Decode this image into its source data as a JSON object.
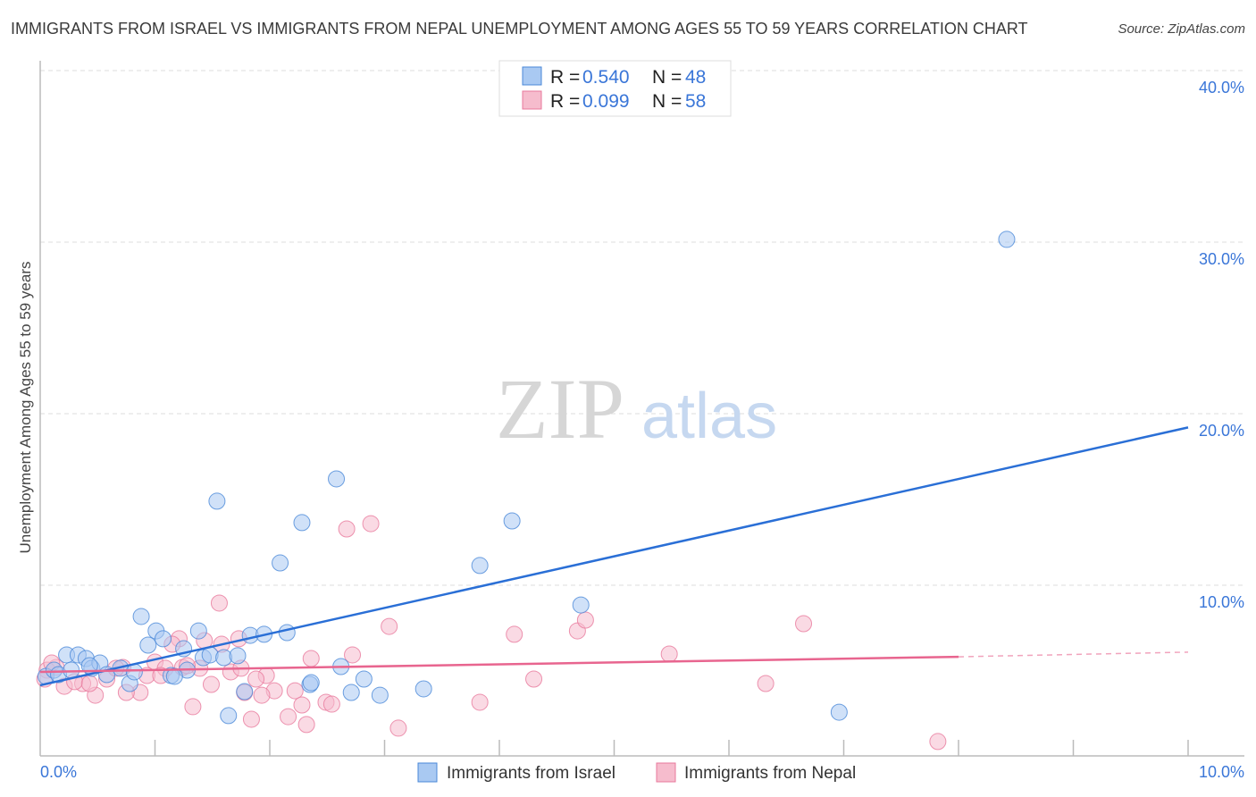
{
  "title": "IMMIGRANTS FROM ISRAEL VS IMMIGRANTS FROM NEPAL UNEMPLOYMENT AMONG AGES 55 TO 59 YEARS CORRELATION CHART",
  "source": "Source: ZipAtlas.com",
  "watermark": {
    "zip": "ZIP",
    "atlas": "atlas"
  },
  "colors": {
    "israel": "#4a88d8",
    "israel_fill": "#a9c9f2",
    "nepal": "#e8799c",
    "nepal_fill": "#f6bccd",
    "israel_line": "#2a6fd6",
    "nepal_line": "#e8658f",
    "tick": "#3a76d8"
  },
  "chart_data": {
    "type": "scatter",
    "title": "IMMIGRANTS FROM ISRAEL VS IMMIGRANTS FROM NEPAL UNEMPLOYMENT AMONG AGES 55 TO 59 YEARS CORRELATION CHART",
    "xlabel": "",
    "ylabel": "Unemployment Among Ages 55 to 59 years",
    "xlim": [
      0,
      10
    ],
    "ylim": [
      0,
      40
    ],
    "x_tick_labels": [
      "0.0%",
      "10.0%"
    ],
    "y_tick_labels": [
      {
        "v": 10,
        "label": "10.0%"
      },
      {
        "v": 20,
        "label": "20.0%"
      },
      {
        "v": 30,
        "label": "30.0%"
      },
      {
        "v": 40,
        "label": "40.0%"
      }
    ],
    "legend_stats": [
      {
        "r_label": "R = ",
        "r": "0.540",
        "n_label": "N = ",
        "n": "48"
      },
      {
        "r_label": "R = ",
        "r": "0.099",
        "n_label": "N = ",
        "n": "58"
      }
    ],
    "series": [
      {
        "name": "Immigrants from Israel",
        "trend": {
          "x": [
            0,
            10
          ],
          "y": [
            4.17,
            19.2
          ]
        },
        "points": [
          [
            0.05,
            4.69
          ],
          [
            0.12,
            5.05
          ],
          [
            0.23,
            5.94
          ],
          [
            0.33,
            5.94
          ],
          [
            0.4,
            5.73
          ],
          [
            0.45,
            5.16
          ],
          [
            0.52,
            5.47
          ],
          [
            0.58,
            4.79
          ],
          [
            0.7,
            5.16
          ],
          [
            0.78,
            4.27
          ],
          [
            0.88,
            8.18
          ],
          [
            0.94,
            6.51
          ],
          [
            1.01,
            7.34
          ],
          [
            1.07,
            6.88
          ],
          [
            1.14,
            4.74
          ],
          [
            1.25,
            6.3
          ],
          [
            1.28,
            5.05
          ],
          [
            1.38,
            7.34
          ],
          [
            1.42,
            5.78
          ],
          [
            1.48,
            5.94
          ],
          [
            1.54,
            14.9
          ],
          [
            1.6,
            5.78
          ],
          [
            1.64,
            2.4
          ],
          [
            1.72,
            5.89
          ],
          [
            1.78,
            3.8
          ],
          [
            1.83,
            7.08
          ],
          [
            1.95,
            7.14
          ],
          [
            2.09,
            11.3
          ],
          [
            2.15,
            7.24
          ],
          [
            2.28,
            13.65
          ],
          [
            2.35,
            4.22
          ],
          [
            2.58,
            16.2
          ],
          [
            2.62,
            5.26
          ],
          [
            2.71,
            3.75
          ],
          [
            2.82,
            4.53
          ],
          [
            2.96,
            3.59
          ],
          [
            3.34,
            3.96
          ],
          [
            3.83,
            11.15
          ],
          [
            4.11,
            13.75
          ],
          [
            4.71,
            8.85
          ],
          [
            6.96,
            2.6
          ],
          [
            8.42,
            30.16
          ],
          [
            0.16,
            4.79
          ],
          [
            0.27,
            5.05
          ],
          [
            1.17,
            4.69
          ],
          [
            0.82,
            4.95
          ],
          [
            0.43,
            5.31
          ],
          [
            2.36,
            4.32
          ]
        ]
      },
      {
        "name": "Immigrants from Nepal",
        "trend": {
          "x": [
            0,
            8
          ],
          "y": [
            4.95,
            5.83
          ],
          "dashed_to": [
            10,
            6.1
          ]
        },
        "points": [
          [
            1.56,
            8.96
          ],
          [
            3.04,
            7.6
          ],
          [
            2.36,
            5.73
          ],
          [
            2.72,
            5.94
          ],
          [
            1.73,
            6.88
          ],
          [
            1.43,
            6.77
          ],
          [
            1.21,
            6.88
          ],
          [
            1.15,
            6.56
          ],
          [
            1.58,
            6.56
          ],
          [
            1.0,
            5.52
          ],
          [
            1.09,
            5.16
          ],
          [
            1.24,
            5.21
          ],
          [
            1.39,
            5.16
          ],
          [
            1.66,
            4.95
          ],
          [
            1.97,
            4.74
          ],
          [
            1.88,
            4.53
          ],
          [
            1.49,
            4.22
          ],
          [
            2.04,
            3.85
          ],
          [
            2.22,
            3.85
          ],
          [
            1.93,
            3.59
          ],
          [
            1.78,
            3.75
          ],
          [
            2.49,
            3.18
          ],
          [
            2.54,
            3.07
          ],
          [
            2.28,
            3.02
          ],
          [
            2.16,
            2.34
          ],
          [
            2.32,
            1.88
          ],
          [
            1.84,
            2.19
          ],
          [
            1.33,
            2.92
          ],
          [
            0.87,
            3.75
          ],
          [
            0.75,
            3.75
          ],
          [
            0.48,
            3.59
          ],
          [
            0.21,
            4.11
          ],
          [
            0.37,
            4.27
          ],
          [
            0.3,
            4.38
          ],
          [
            0.14,
            5.21
          ],
          [
            0.06,
            5.05
          ],
          [
            0.72,
            5.21
          ],
          [
            0.93,
            4.74
          ],
          [
            3.12,
            1.67
          ],
          [
            0.04,
            4.53
          ],
          [
            2.67,
            13.28
          ],
          [
            2.88,
            13.59
          ],
          [
            4.13,
            7.14
          ],
          [
            4.68,
            7.34
          ],
          [
            4.75,
            7.97
          ],
          [
            5.48,
            5.99
          ],
          [
            4.3,
            4.53
          ],
          [
            3.83,
            3.18
          ],
          [
            6.32,
            4.27
          ],
          [
            6.65,
            7.76
          ],
          [
            7.82,
            0.89
          ],
          [
            0.58,
            4.53
          ],
          [
            0.43,
            4.27
          ],
          [
            0.66,
            5.16
          ],
          [
            0.1,
            5.47
          ],
          [
            1.05,
            4.74
          ],
          [
            1.28,
            5.31
          ],
          [
            1.75,
            5.16
          ]
        ]
      }
    ]
  }
}
